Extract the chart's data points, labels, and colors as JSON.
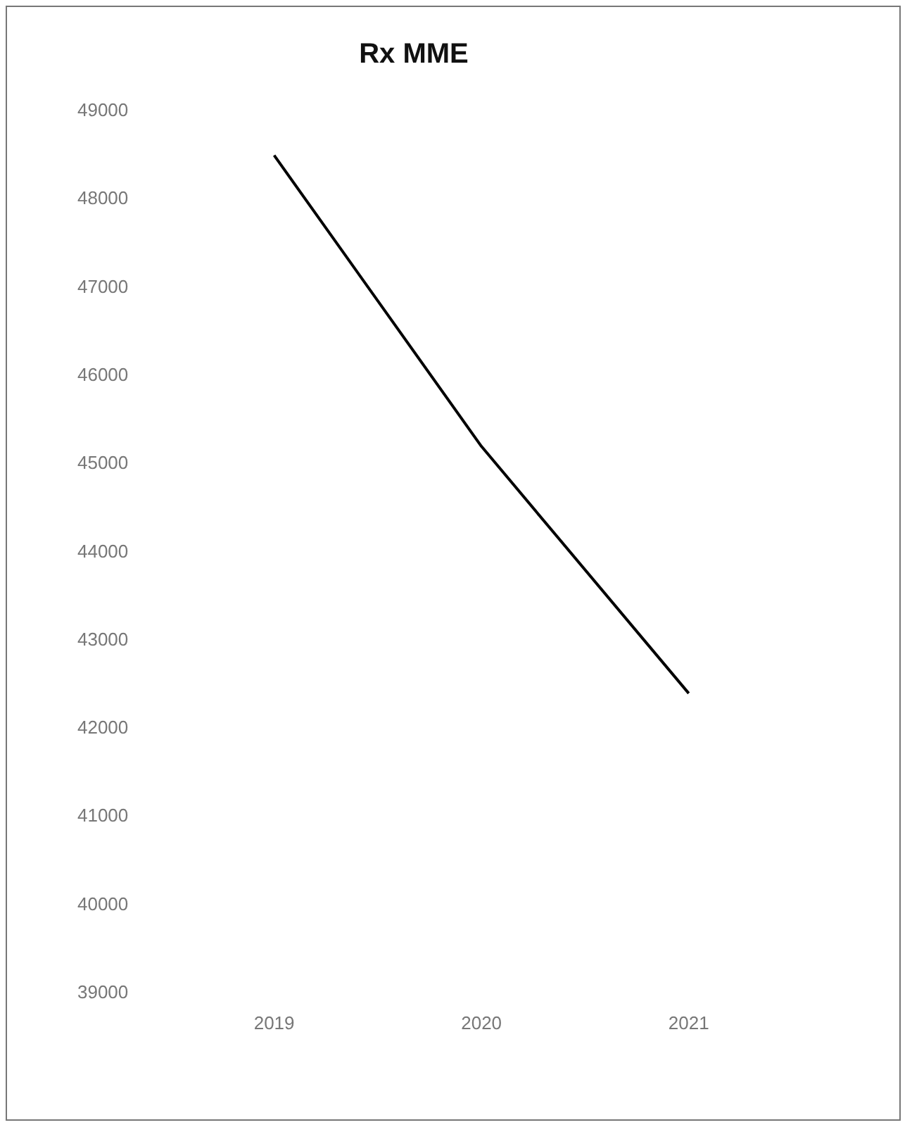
{
  "chart_data": {
    "type": "line",
    "title": "Rx MME",
    "categories": [
      "2019",
      "2020",
      "2021"
    ],
    "series": [
      {
        "color": "#000000",
        "values": [
          48500,
          45200,
          42400
        ]
      }
    ],
    "ylim": [
      39000,
      49000
    ],
    "yticks": [
      39000,
      40000,
      41000,
      42000,
      43000,
      44000,
      45000,
      46000,
      47000,
      48000,
      49000
    ],
    "grid": false,
    "legend": false,
    "marker": "none",
    "line_style": "solid"
  }
}
